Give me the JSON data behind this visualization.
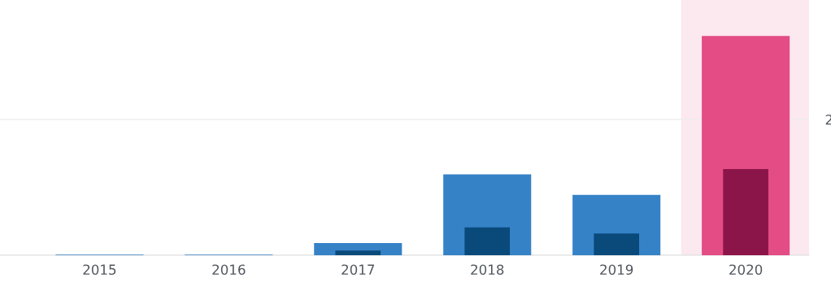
{
  "chart_data": {
    "type": "bar",
    "categories": [
      "2015",
      "2016",
      "2017",
      "2018",
      "2019",
      "2020"
    ],
    "series": [
      {
        "colors": [
          "#3582c7",
          "#3582c7",
          "#3582c7",
          "#3582c7",
          "#3582c7",
          "#e34c84"
        ],
        "values": [
          0.01,
          0.01,
          0.18,
          1.19,
          0.89,
          3.23
        ]
      },
      {
        "colors": [
          "#0a4a7a",
          "#0a4a7a",
          "#0a4a7a",
          "#0a4a7a",
          "#0a4a7a",
          "#8b1548"
        ],
        "values": [
          null,
          null,
          0.07,
          0.41,
          0.32,
          1.27
        ]
      }
    ],
    "ylim": [
      0,
      3.76
    ],
    "yticks": [
      {
        "value": 0,
        "label": null
      },
      2
    ],
    "bands": [
      {
        "axis": "x",
        "from": "2020",
        "to": "2020",
        "color": "#fce8ef"
      }
    ],
    "grid": "y",
    "legend": false
  }
}
